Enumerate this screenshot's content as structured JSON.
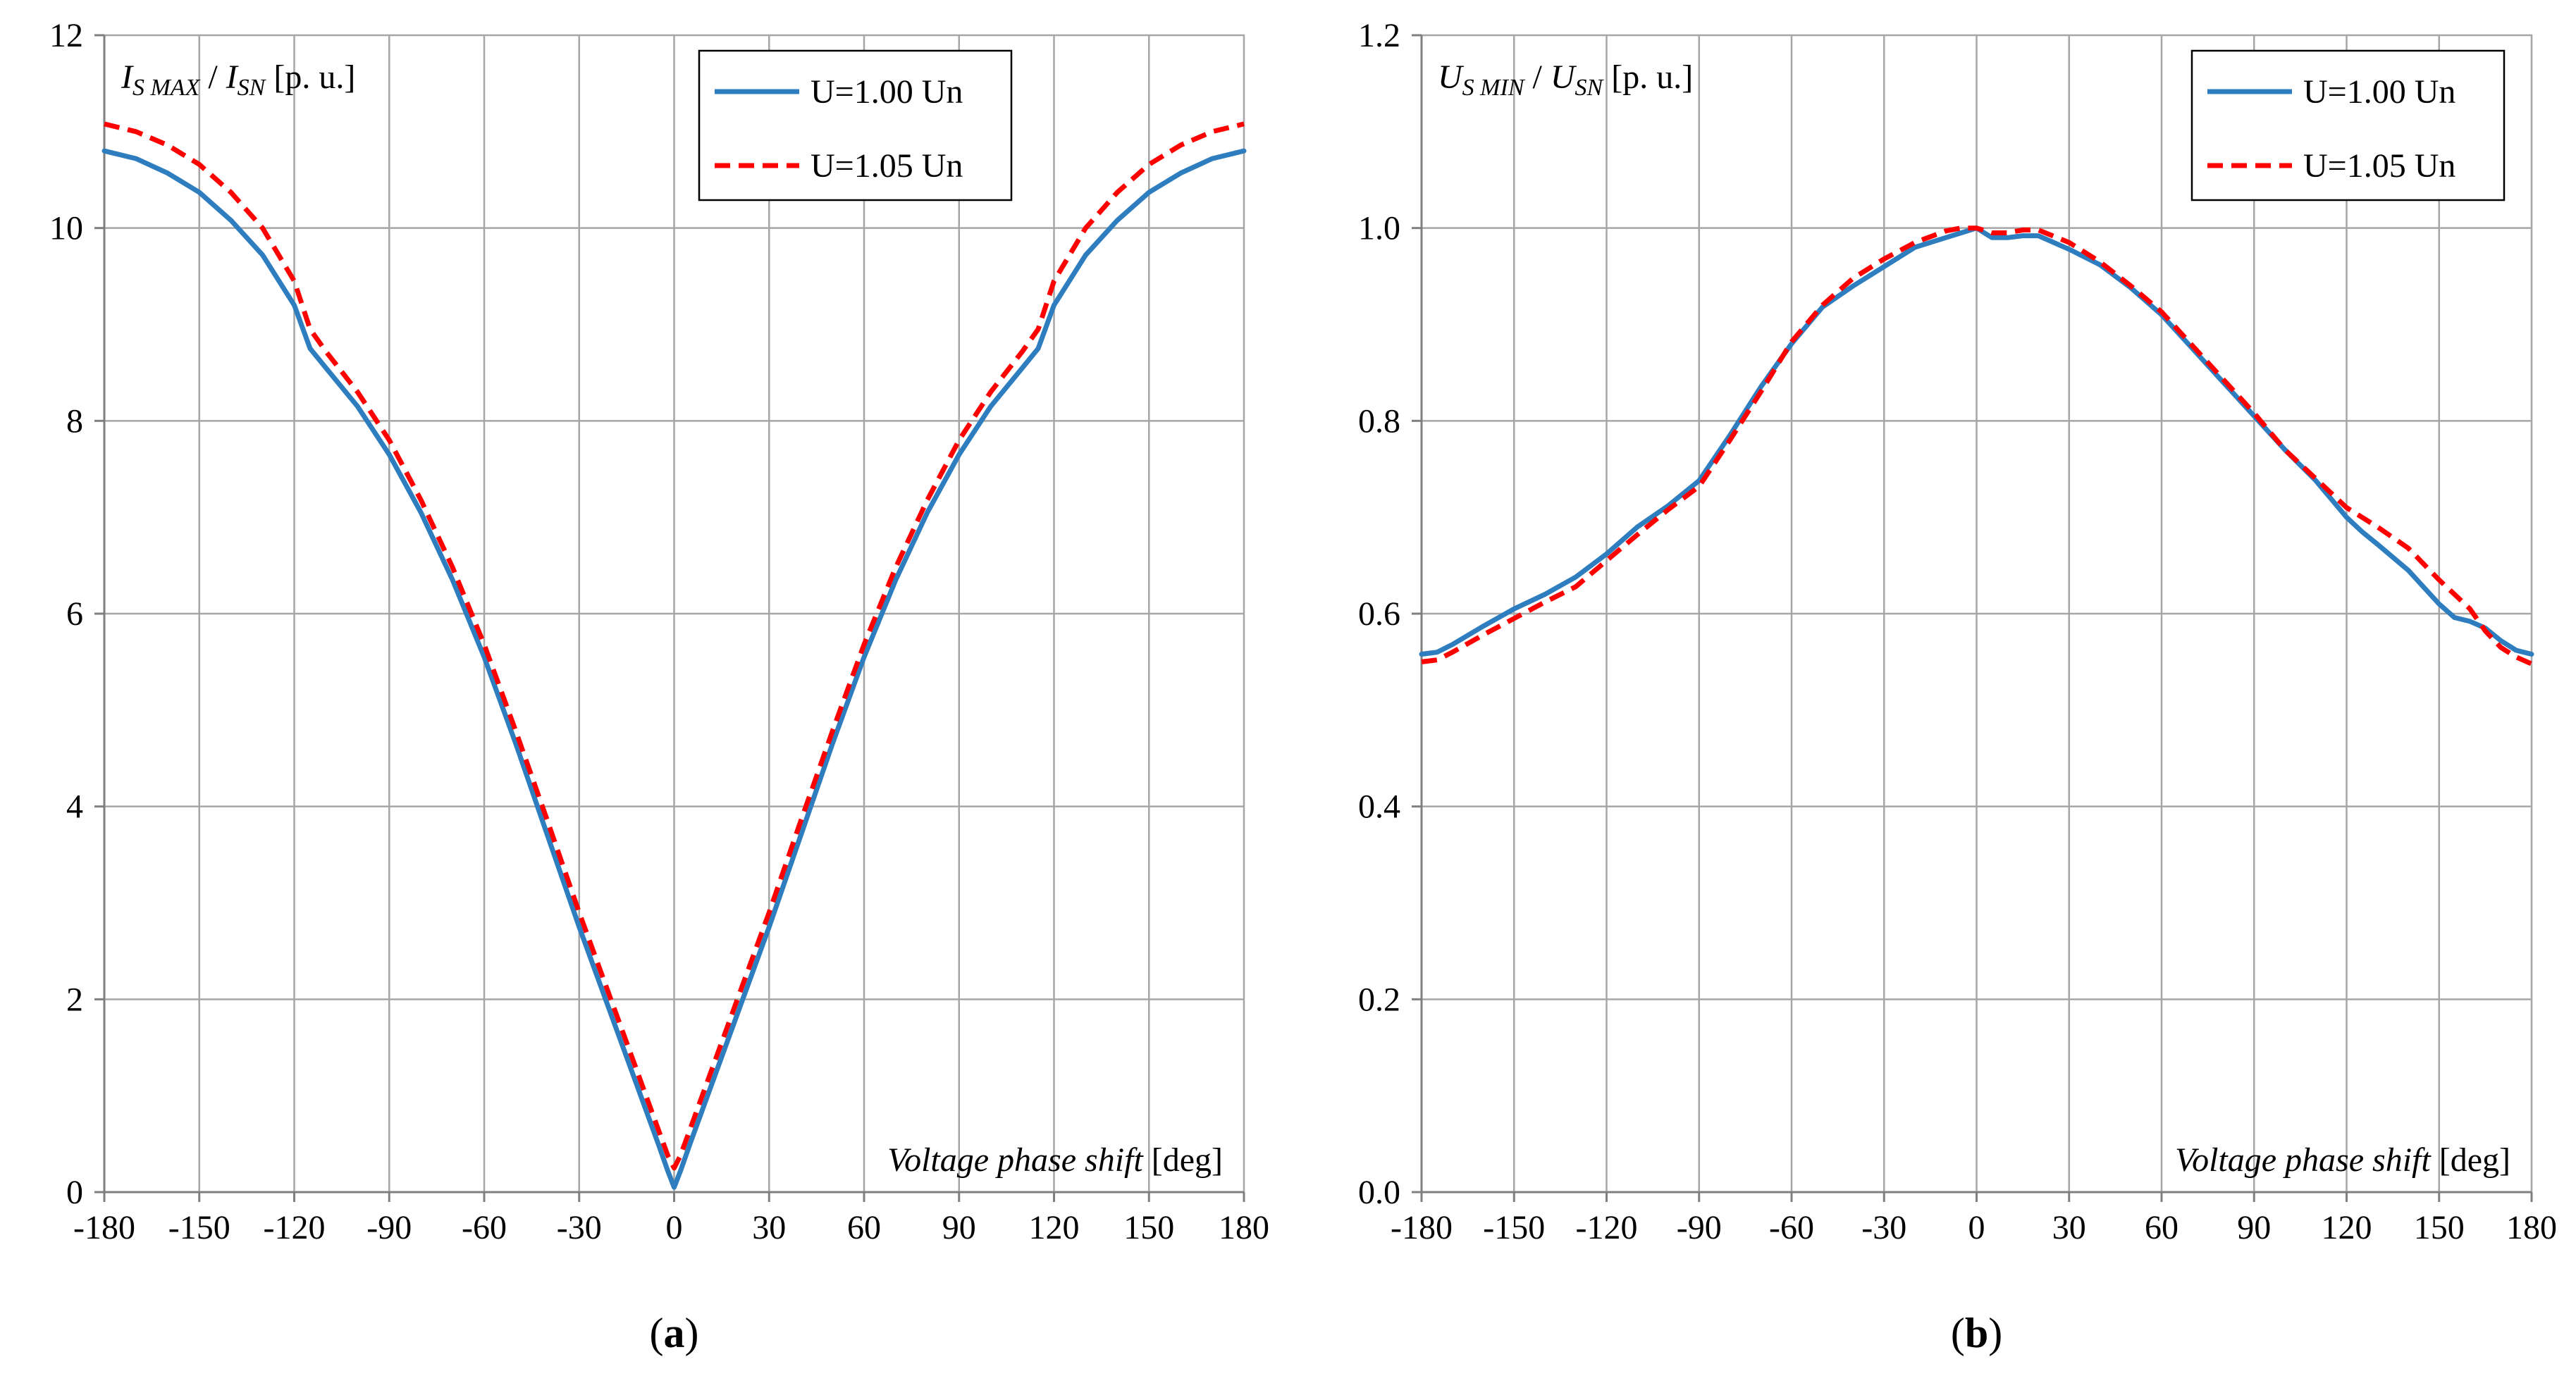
{
  "chart_data": [
    {
      "type": "line",
      "panel_label": "a",
      "x_tick_labels": [
        "-180",
        "-150",
        "-120",
        "-90",
        "-60",
        "-30",
        "0",
        "30",
        "60",
        "90",
        "120",
        "150",
        "180"
      ],
      "y_tick_labels": [
        "0",
        "2",
        "4",
        "6",
        "8",
        "10",
        "12"
      ],
      "xlim": [
        -180,
        180
      ],
      "ylim": [
        0,
        12
      ],
      "x_ticks": [
        -180,
        -150,
        -120,
        -90,
        -60,
        -30,
        0,
        30,
        60,
        90,
        120,
        150,
        180
      ],
      "y_ticks": [
        0,
        2,
        4,
        6,
        8,
        10,
        12
      ],
      "grid": true,
      "legend_position": "top-right",
      "ylabel": {
        "parts": [
          {
            "text": "I",
            "italic": true,
            "sub": false
          },
          {
            "text": "S MAX",
            "italic": true,
            "sub": true
          },
          {
            "text": " / ",
            "italic": false,
            "sub": false
          },
          {
            "text": "I",
            "italic": true,
            "sub": false
          },
          {
            "text": "SN",
            "italic": true,
            "sub": true
          },
          {
            "text": " [p. u.]",
            "italic": false,
            "sub": false
          }
        ]
      },
      "xlabel": {
        "italic_part": "Voltage phase shift",
        "normal_part": " [deg]"
      },
      "series": [
        {
          "name": "U=1.00 Un",
          "color": "#2e7ebf",
          "dash": "solid",
          "x": [
            -180,
            -170,
            -160,
            -150,
            -140,
            -130,
            -120,
            -115,
            -110,
            -100,
            -90,
            -80,
            -70,
            -60,
            -50,
            -40,
            -30,
            -20,
            -10,
            -5,
            -2,
            0,
            2,
            5,
            10,
            20,
            30,
            40,
            50,
            60,
            70,
            80,
            90,
            100,
            110,
            115,
            120,
            130,
            140,
            150,
            160,
            170,
            180
          ],
          "y": [
            10.8,
            10.72,
            10.57,
            10.37,
            10.08,
            9.72,
            9.2,
            8.75,
            8.55,
            8.15,
            7.65,
            7.05,
            6.35,
            5.55,
            4.65,
            3.7,
            2.75,
            1.85,
            0.95,
            0.5,
            0.22,
            0.05,
            0.22,
            0.5,
            0.95,
            1.85,
            2.75,
            3.7,
            4.65,
            5.55,
            6.35,
            7.05,
            7.65,
            8.15,
            8.55,
            8.75,
            9.2,
            9.72,
            10.08,
            10.37,
            10.57,
            10.72,
            10.8
          ]
        },
        {
          "name": "U=1.05 Un",
          "color": "#ff0000",
          "dash": "dashed",
          "x": [
            -180,
            -170,
            -160,
            -150,
            -140,
            -130,
            -120,
            -115,
            -110,
            -100,
            -90,
            -80,
            -70,
            -60,
            -50,
            -40,
            -30,
            -20,
            -10,
            -5,
            -2,
            0,
            2,
            5,
            10,
            20,
            30,
            40,
            50,
            60,
            70,
            80,
            90,
            100,
            110,
            115,
            120,
            130,
            140,
            150,
            160,
            170,
            180
          ],
          "y": [
            11.08,
            11.0,
            10.86,
            10.66,
            10.37,
            10.0,
            9.45,
            8.95,
            8.72,
            8.3,
            7.8,
            7.18,
            6.48,
            5.68,
            4.78,
            3.85,
            2.9,
            2.0,
            1.1,
            0.65,
            0.38,
            0.25,
            0.38,
            0.65,
            1.1,
            2.0,
            2.9,
            3.85,
            4.78,
            5.68,
            6.48,
            7.18,
            7.8,
            8.3,
            8.72,
            8.95,
            9.45,
            10.0,
            10.37,
            10.66,
            10.86,
            11.0,
            11.08
          ]
        }
      ]
    },
    {
      "type": "line",
      "panel_label": "b",
      "x_tick_labels": [
        "-180",
        "-150",
        "-120",
        "-90",
        "-60",
        "-30",
        "0",
        "30",
        "60",
        "90",
        "120",
        "150",
        "180"
      ],
      "y_tick_labels": [
        "0.0",
        "0.2",
        "0.4",
        "0.6",
        "0.8",
        "1.0",
        "1.2"
      ],
      "xlim": [
        -180,
        180
      ],
      "ylim": [
        0,
        1.2
      ],
      "x_ticks": [
        -180,
        -150,
        -120,
        -90,
        -60,
        -30,
        0,
        30,
        60,
        90,
        120,
        150,
        180
      ],
      "y_ticks": [
        0,
        0.2,
        0.4,
        0.6,
        0.8,
        1.0,
        1.2
      ],
      "grid": true,
      "legend_position": "top-right",
      "ylabel": {
        "parts": [
          {
            "text": "U",
            "italic": true,
            "sub": false
          },
          {
            "text": "S MIN",
            "italic": true,
            "sub": true
          },
          {
            "text": " / ",
            "italic": false,
            "sub": false
          },
          {
            "text": "U",
            "italic": true,
            "sub": false
          },
          {
            "text": "SN",
            "italic": true,
            "sub": true
          },
          {
            "text": " [p. u.]",
            "italic": false,
            "sub": false
          }
        ]
      },
      "xlabel": {
        "italic_part": "Voltage phase shift",
        "normal_part": " [deg]"
      },
      "series": [
        {
          "name": "U=1.00 Un",
          "color": "#2e7ebf",
          "dash": "solid",
          "x": [
            -180,
            -175,
            -170,
            -160,
            -150,
            -140,
            -130,
            -120,
            -110,
            -100,
            -90,
            -80,
            -70,
            -60,
            -50,
            -40,
            -30,
            -20,
            -10,
            -5,
            0,
            5,
            10,
            15,
            20,
            30,
            40,
            50,
            60,
            70,
            80,
            90,
            100,
            110,
            120,
            125,
            130,
            140,
            150,
            155,
            160,
            165,
            170,
            175,
            180
          ],
          "y": [
            0.558,
            0.56,
            0.568,
            0.587,
            0.605,
            0.62,
            0.638,
            0.662,
            0.69,
            0.712,
            0.738,
            0.785,
            0.835,
            0.88,
            0.918,
            0.94,
            0.96,
            0.98,
            0.99,
            0.995,
            1.0,
            0.99,
            0.99,
            0.992,
            0.992,
            0.978,
            0.962,
            0.938,
            0.91,
            0.875,
            0.84,
            0.805,
            0.77,
            0.738,
            0.7,
            0.685,
            0.672,
            0.645,
            0.61,
            0.596,
            0.592,
            0.585,
            0.572,
            0.562,
            0.558
          ]
        },
        {
          "name": "U=1.05 Un",
          "color": "#ff0000",
          "dash": "dashed",
          "x": [
            -180,
            -175,
            -170,
            -160,
            -150,
            -140,
            -130,
            -120,
            -110,
            -100,
            -90,
            -80,
            -70,
            -60,
            -50,
            -40,
            -30,
            -20,
            -10,
            -5,
            0,
            5,
            10,
            15,
            20,
            30,
            40,
            50,
            60,
            70,
            80,
            90,
            100,
            110,
            120,
            125,
            130,
            140,
            150,
            155,
            160,
            165,
            170,
            175,
            180
          ],
          "y": [
            0.55,
            0.552,
            0.56,
            0.578,
            0.595,
            0.612,
            0.628,
            0.655,
            0.682,
            0.708,
            0.732,
            0.78,
            0.83,
            0.882,
            0.92,
            0.948,
            0.968,
            0.985,
            0.997,
            1.0,
            1.0,
            0.995,
            0.995,
            0.998,
            0.998,
            0.985,
            0.965,
            0.94,
            0.913,
            0.878,
            0.843,
            0.808,
            0.77,
            0.74,
            0.71,
            0.7,
            0.69,
            0.668,
            0.635,
            0.62,
            0.605,
            0.582,
            0.565,
            0.555,
            0.548
          ]
        }
      ]
    }
  ]
}
